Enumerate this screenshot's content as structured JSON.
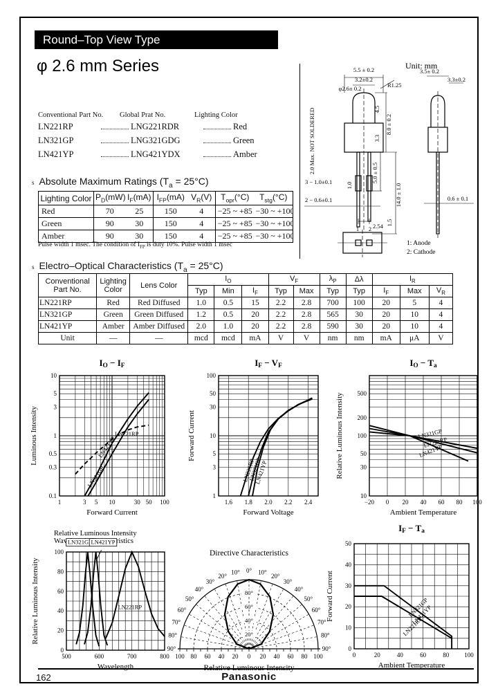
{
  "page": {
    "number": "162",
    "brand": "Panasonic"
  },
  "banner": "Round–Top View Type",
  "title": "φ 2.6 mm  Series",
  "drawing": {
    "unit_note": "Unit: mm",
    "pin_legend_1": "1: Anode",
    "pin_legend_2": "2: Cathode",
    "labels": [
      "5.5 ± 0.2",
      "3.2±0.2",
      "φ2.6± 0.2",
      "R1.25",
      "2.0 Max. NOT SOLDERED",
      "8.0 ± 0.2",
      "4.5",
      "3.3",
      "5.0 ± 0.5",
      "1.0",
      "14.0 ± 1.0",
      "3 − 1.0±0.1",
      "2 − 0.6±0.1",
      "2.54",
      "1.5",
      "1",
      "2",
      "3.5± 0.2",
      "3.3±0.2",
      "0.6 ± 0.1"
    ]
  },
  "part_list": {
    "headers": [
      "Conventional Part No.",
      "Global Prat No.",
      "Lighting Color"
    ],
    "rows": [
      [
        "LN221RP",
        "LNG221RDR",
        "Red"
      ],
      [
        "LN321GP",
        "LNG321GDG",
        "Green"
      ],
      [
        "LN421YP",
        "LNG421YDX",
        "Amber"
      ]
    ]
  },
  "abs_max": {
    "bullet": "s",
    "title": "Absolute Maximum Ratings (T_{a} = 25°C)",
    "columns": [
      "Lighting Color",
      "P_{D}(mW)",
      "I_{F}(mA)",
      "I_{FP}(mA)",
      "V_{R}(V)",
      "T_{opr}(°C)",
      "T_{stg}(°C)"
    ],
    "rows": [
      [
        "Red",
        "70",
        "25",
        "150",
        "4",
        "−25 ~ +85",
        "−30 ~ +100"
      ],
      [
        "Green",
        "90",
        "30",
        "150",
        "4",
        "−25 ~ +85",
        "−30 ~ +100"
      ],
      [
        "Amber",
        "90",
        "30",
        "150",
        "4",
        "−25 ~ +85",
        "−30 ~ +100"
      ]
    ],
    "footnote": "Pulse width 1 msec. The condition of I_{FP} is duty 10%. Pulse width 1 msec"
  },
  "eo": {
    "bullet": "s",
    "title": "Electro–Optical Characteristics (T_{a} = 25°C)",
    "col1": "Conventional\nPart No.",
    "col2": "Lighting\nColor",
    "col3": "Lens Color",
    "groups": [
      {
        "label": "I_{O}",
        "subs": [
          "Typ",
          "Min",
          "I_{F}"
        ]
      },
      {
        "label": "V_{F}",
        "subs": [
          "Typ",
          "Max"
        ]
      },
      {
        "label": "λ_{P}",
        "subs": [
          "Typ"
        ]
      },
      {
        "label": "Δλ",
        "subs": [
          "Typ"
        ]
      },
      {
        "label": "I_{R}",
        "subs": [
          "I_{F}",
          "Max",
          "V_{R}"
        ]
      }
    ],
    "rows": [
      [
        "LN221RP",
        "Red",
        "Red Diffused",
        "1.0",
        "0.5",
        "15",
        "2.2",
        "2.8",
        "700",
        "100",
        "20",
        "5",
        "4"
      ],
      [
        "LN321GP",
        "Green",
        "Green Diffused",
        "1.2",
        "0.5",
        "20",
        "2.2",
        "2.8",
        "565",
        "30",
        "20",
        "10",
        "4"
      ],
      [
        "LN421YP",
        "Amber",
        "Amber Diffused",
        "2.0",
        "1.0",
        "20",
        "2.2",
        "2.8",
        "590",
        "30",
        "20",
        "10",
        "4"
      ]
    ],
    "unit_row": [
      "Unit",
      "—",
      "—",
      "mcd",
      "mcd",
      "mA",
      "V",
      "V",
      "nm",
      "nm",
      "mA",
      "μA",
      "V"
    ]
  },
  "chart_data": [
    {
      "id": "io_if",
      "type": "line",
      "title": "I_{O} − I_{F}",
      "xlabel": "Forward Current",
      "ylabel": "Luminous Intensity",
      "xscale": "log",
      "yscale": "log",
      "xlim": [
        1,
        100
      ],
      "ylim": [
        0.1,
        10
      ],
      "x_ticks": [
        [
          1,
          "1"
        ],
        [
          3,
          "3"
        ],
        [
          5,
          "5"
        ],
        [
          10,
          "10"
        ],
        [
          30,
          "30"
        ],
        [
          50,
          "50"
        ],
        [
          100,
          "100"
        ]
      ],
      "y_ticks": [
        [
          0.1,
          "0.1"
        ],
        [
          0.3,
          "0.3"
        ],
        [
          0.5,
          "0.5"
        ],
        [
          1,
          "1"
        ],
        [
          3,
          "3"
        ],
        [
          5,
          "5"
        ],
        [
          10,
          "10"
        ]
      ],
      "series": [
        {
          "name": "LN421YP",
          "dash": false,
          "points": [
            [
              3,
              0.1
            ],
            [
              5,
              0.22
            ],
            [
              10,
              0.75
            ],
            [
              20,
              1.9
            ],
            [
              30,
              3.1
            ],
            [
              50,
              5.2
            ]
          ]
        },
        {
          "name": "LN221RP",
          "dash": true,
          "points": [
            [
              2,
              0.23
            ],
            [
              3,
              0.34
            ],
            [
              5,
              0.52
            ],
            [
              10,
              0.88
            ],
            [
              15,
              1.1
            ],
            [
              20,
              1.25
            ],
            [
              30,
              1.4
            ],
            [
              50,
              1.5
            ]
          ]
        },
        {
          "name": "LN321GP",
          "dash": false,
          "points": [
            [
              3.5,
              0.1
            ],
            [
              5,
              0.17
            ],
            [
              10,
              0.5
            ],
            [
              20,
              1.4
            ],
            [
              30,
              2.3
            ],
            [
              50,
              4.0
            ]
          ]
        }
      ],
      "labels": [
        {
          "text": "LN421YP",
          "x": 8.5,
          "y": 0.62,
          "rot": -55
        },
        {
          "text": "LN221RP",
          "x": 19,
          "y": 1.0,
          "rot": 0
        },
        {
          "text": "LN321GP",
          "x": 5.3,
          "y": 0.2,
          "rot": -55
        }
      ]
    },
    {
      "id": "if_vf",
      "type": "line",
      "title": "I_{F} − V_{F}",
      "xlabel": "Forward Voltage",
      "ylabel": "Forward Current",
      "xscale": "linear",
      "yscale": "log",
      "xlim": [
        1.5,
        2.5
      ],
      "ylim": [
        1,
        100
      ],
      "x_ticks": [
        [
          1.6,
          "1.6"
        ],
        [
          1.8,
          "1.8"
        ],
        [
          2.0,
          "2.0"
        ],
        [
          2.2,
          "2.2"
        ],
        [
          2.4,
          "2.4"
        ]
      ],
      "y_ticks": [
        [
          1,
          "1"
        ],
        [
          3,
          "3"
        ],
        [
          5,
          "5"
        ],
        [
          10,
          "10"
        ],
        [
          30,
          "30"
        ],
        [
          50,
          "50"
        ],
        [
          100,
          "100"
        ]
      ],
      "series": [
        {
          "name": "LN221RP",
          "dash": false,
          "points": [
            [
              1.72,
              1
            ],
            [
              1.78,
              2.1
            ],
            [
              1.85,
              4.4
            ],
            [
              1.92,
              8
            ],
            [
              2.0,
              13
            ],
            [
              2.1,
              19.5
            ],
            [
              2.2,
              26
            ],
            [
              2.3,
              33
            ],
            [
              2.44,
              41
            ]
          ]
        },
        {
          "name": "LN321GP",
          "dash": false,
          "points": [
            [
              1.8,
              1
            ],
            [
              1.86,
              2.6
            ],
            [
              1.93,
              6
            ],
            [
              2.0,
              11.5
            ],
            [
              2.1,
              19
            ],
            [
              2.2,
              26
            ],
            [
              2.3,
              33
            ],
            [
              2.44,
              42
            ]
          ]
        },
        {
          "name": "LN421YP",
          "dash": false,
          "points": [
            [
              1.84,
              1
            ],
            [
              1.89,
              2.8
            ],
            [
              1.95,
              6.5
            ],
            [
              2.02,
              12.5
            ],
            [
              2.1,
              19.2
            ],
            [
              2.2,
              26.5
            ],
            [
              2.32,
              34
            ],
            [
              2.44,
              42.5
            ]
          ]
        }
      ],
      "labels": [
        {
          "text": "LN221RP",
          "x": 1.82,
          "y": 2.6,
          "rot": -72
        },
        {
          "text": "LN321GP",
          "x": 1.885,
          "y": 2.7,
          "rot": -72
        },
        {
          "text": "LN421YP",
          "x": 1.945,
          "y": 2.4,
          "rot": -72
        }
      ]
    },
    {
      "id": "io_ta",
      "type": "line",
      "title": "I_{O} − T_{a}",
      "xlabel": "Ambient Temperature",
      "ylabel": "Relative Luminous Intensity",
      "xscale": "linear",
      "yscale": "log",
      "xlim": [
        -20,
        100
      ],
      "ylim": [
        10,
        1000
      ],
      "x_ticks": [
        [
          -20,
          "−20"
        ],
        [
          0,
          "0"
        ],
        [
          20,
          "20"
        ],
        [
          40,
          "40"
        ],
        [
          60,
          "60"
        ],
        [
          80,
          "80"
        ],
        [
          100,
          "100"
        ]
      ],
      "y_ticks": [
        [
          10,
          "10"
        ],
        [
          30,
          "30"
        ],
        [
          50,
          "50"
        ],
        [
          100,
          "100"
        ],
        [
          200,
          "200"
        ],
        [
          500,
          "500"
        ]
      ],
      "series": [
        {
          "name": "LN321GP",
          "dash": false,
          "points": [
            [
              -20,
              132
            ],
            [
              25,
              100
            ],
            [
              100,
              62
            ]
          ]
        },
        {
          "name": "LN221RP",
          "dash": false,
          "points": [
            [
              -20,
              116
            ],
            [
              25,
              100
            ],
            [
              100,
              52
            ]
          ]
        },
        {
          "name": "LN421YP",
          "dash": false,
          "points": [
            [
              -20,
              148
            ],
            [
              25,
              100
            ],
            [
              90,
              38
            ]
          ]
        }
      ],
      "labels": [
        {
          "text": "LN321GP",
          "x": 48,
          "y": 100,
          "rot": -14
        },
        {
          "text": "LN221RP",
          "x": 54,
          "y": 72,
          "rot": -16
        },
        {
          "text": "LN421YP",
          "x": 49,
          "y": 52,
          "rot": -22
        }
      ]
    },
    {
      "id": "wavelength",
      "type": "line",
      "title": "Relative Luminous Intensity\nWavelength Characteristics",
      "xlabel": "Wavelength",
      "ylabel": "Relative Luminous Intensity",
      "xscale": "linear",
      "yscale": "linear",
      "xlim": [
        500,
        800
      ],
      "ylim": [
        0,
        100
      ],
      "x_ticks": [
        [
          500,
          "500"
        ],
        [
          600,
          "600"
        ],
        [
          700,
          "700"
        ],
        [
          800,
          "800"
        ]
      ],
      "y_ticks": [
        [
          0,
          "0"
        ],
        [
          20,
          "20"
        ],
        [
          40,
          "40"
        ],
        [
          60,
          "60"
        ],
        [
          80,
          "80"
        ],
        [
          100,
          "100"
        ]
      ],
      "series": [
        {
          "name": "LN321GP",
          "dash": false,
          "points": [
            [
              530,
              6
            ],
            [
              540,
              18
            ],
            [
              550,
              45
            ],
            [
              558,
              78
            ],
            [
              565,
              100
            ],
            [
              572,
              78
            ],
            [
              580,
              45
            ],
            [
              590,
              15
            ],
            [
              600,
              4
            ]
          ]
        },
        {
          "name": "LN421YP",
          "dash": false,
          "points": [
            [
              555,
              6
            ],
            [
              565,
              18
            ],
            [
              575,
              45
            ],
            [
              583,
              78
            ],
            [
              590,
              100
            ],
            [
              597,
              78
            ],
            [
              605,
              45
            ],
            [
              615,
              15
            ],
            [
              625,
              5
            ]
          ]
        },
        {
          "name": "LN221RP",
          "dash": false,
          "points": [
            [
              620,
              12
            ],
            [
              640,
              28
            ],
            [
              660,
              55
            ],
            [
              680,
              83
            ],
            [
              700,
              100
            ],
            [
              720,
              85
            ],
            [
              740,
              60
            ],
            [
              760,
              37
            ],
            [
              780,
              22
            ],
            [
              800,
              14
            ]
          ]
        }
      ],
      "labels": [
        {
          "text": "LN321GP",
          "x": 541,
          "y": 108,
          "rot": 0,
          "box": true
        },
        {
          "text": "LN421YP",
          "x": 612,
          "y": 108,
          "rot": 0,
          "box": true
        },
        {
          "text": "LN221RP",
          "x": 694,
          "y": 42,
          "rot": 0
        }
      ]
    },
    {
      "id": "directivity",
      "type": "polar",
      "title": "Directive Characteristics",
      "xlabel": "Relative Luminous Intensity",
      "angle_labels": [
        "0°",
        "10°",
        "20°",
        "30°",
        "40°",
        "50°",
        "60°",
        "70°",
        "80°",
        "90°"
      ],
      "inner_labels": [
        "80°",
        "60°",
        "40°",
        "20°"
      ],
      "bottom_scale": [
        "100",
        "80",
        "60",
        "40",
        "20",
        "0",
        "20",
        "40",
        "60",
        "80",
        "100"
      ],
      "lobe": [
        [
          0,
          100
        ],
        [
          10,
          95
        ],
        [
          22,
          81
        ],
        [
          35,
          61
        ],
        [
          50,
          39
        ],
        [
          69,
          19
        ],
        [
          90,
          0
        ]
      ]
    },
    {
      "id": "if_ta",
      "type": "line",
      "title": "I_{F} − T_{a}",
      "xlabel": "Ambient Temperature",
      "ylabel": "Forward Current",
      "xscale": "linear",
      "yscale": "linear",
      "xlim": [
        0,
        100
      ],
      "ylim": [
        0,
        50
      ],
      "x_ticks": [
        [
          0,
          "0"
        ],
        [
          20,
          "20"
        ],
        [
          40,
          "40"
        ],
        [
          60,
          "60"
        ],
        [
          80,
          "80"
        ],
        [
          100,
          "100"
        ]
      ],
      "y_ticks": [
        [
          0,
          "0"
        ],
        [
          10,
          "10"
        ],
        [
          20,
          "20"
        ],
        [
          30,
          "30"
        ],
        [
          40,
          "40"
        ],
        [
          50,
          "50"
        ]
      ],
      "series": [
        {
          "name": "LN321GP / LN421YP",
          "dash": false,
          "points": [
            [
              0,
              30
            ],
            [
              26,
              30
            ],
            [
              85,
              6
            ],
            [
              85,
              0
            ]
          ]
        },
        {
          "name": "LN221RP",
          "dash": false,
          "points": [
            [
              0,
              25
            ],
            [
              24,
              25
            ],
            [
              85,
              5
            ]
          ]
        }
      ],
      "labels": [
        {
          "text": "LN321GP",
          "x": 57,
          "y": 19,
          "rot": -45
        },
        {
          "text": "LN421YP",
          "x": 60,
          "y": 15.5,
          "rot": -45
        },
        {
          "text": "LN221RP",
          "x": 52,
          "y": 10,
          "rot": -45
        }
      ]
    }
  ]
}
